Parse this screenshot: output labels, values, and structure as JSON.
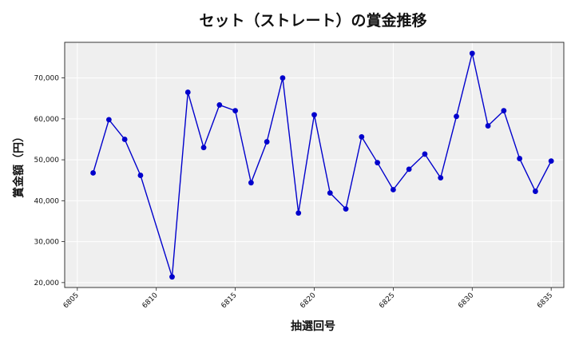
{
  "chart_data": {
    "type": "line",
    "title": "セット（ストレート）の賞金推移",
    "xlabel": "抽選回号",
    "ylabel": "賞金額（円）",
    "xlim": [
      6804.2,
      6835.8
    ],
    "ylim": [
      18800,
      78700
    ],
    "x_ticks": [
      6805,
      6810,
      6815,
      6820,
      6825,
      6830,
      6835
    ],
    "x_tick_labels": [
      "6805",
      "6810",
      "6815",
      "6820",
      "6825",
      "6830",
      "6835"
    ],
    "y_ticks": [
      20000,
      30000,
      40000,
      50000,
      60000,
      70000
    ],
    "y_tick_labels": [
      "20,000",
      "30,000",
      "40,000",
      "50,000",
      "60,000",
      "70,000"
    ],
    "grid": true,
    "line_color": "#0000cc",
    "plot_bg": "#efefef",
    "series": [
      {
        "x": [
          6806,
          6807,
          6808,
          6809,
          6811,
          6812,
          6813,
          6814,
          6815,
          6816,
          6817,
          6818,
          6819,
          6820,
          6821,
          6822,
          6823,
          6824,
          6825,
          6826,
          6827,
          6828,
          6829,
          6830,
          6831,
          6832,
          6833,
          6834,
          6835
        ],
        "y": [
          46800,
          59800,
          55000,
          46200,
          21400,
          66500,
          53000,
          63400,
          62000,
          44400,
          54400,
          70000,
          37000,
          61000,
          41900,
          38000,
          55600,
          49300,
          42700,
          47700,
          51400,
          45600,
          60600,
          76000,
          58300,
          62000,
          50300,
          42300,
          49700
        ]
      }
    ]
  }
}
